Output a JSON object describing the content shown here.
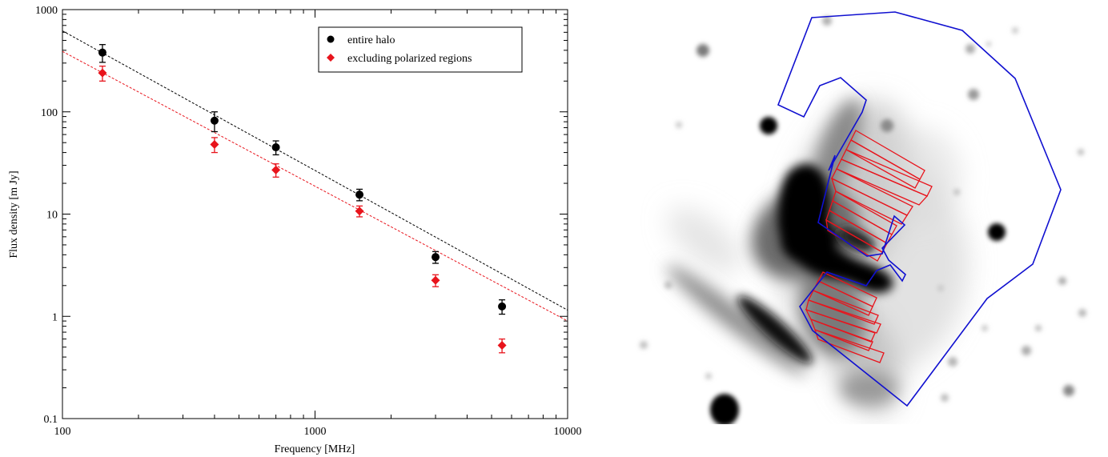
{
  "chart_data": {
    "type": "scatter",
    "xlabel": "Frequency [MHz]",
    "ylabel": "Flux density [m Jy]",
    "xscale": "log",
    "yscale": "log",
    "xlim": [
      100,
      10000
    ],
    "ylim": [
      0.1,
      1000
    ],
    "x_ticks": [
      {
        "value": 100,
        "label": "100"
      },
      {
        "value": 1000,
        "label": "1000"
      },
      {
        "value": 10000,
        "label": "10000"
      }
    ],
    "y_ticks": [
      {
        "value": 0.1,
        "label": "0.1"
      },
      {
        "value": 1,
        "label": "1"
      },
      {
        "value": 10,
        "label": "10"
      },
      {
        "value": 100,
        "label": "100"
      },
      {
        "value": 1000,
        "label": "1000"
      }
    ],
    "legend_position": "top-right",
    "series": [
      {
        "name": "entire halo",
        "color": "#000000",
        "marker": "circle",
        "x": [
          144,
          400,
          700,
          1500,
          3000,
          5500
        ],
        "y": [
          380,
          82,
          45,
          15.5,
          3.8,
          1.25
        ],
        "y_low": [
          305,
          64,
          38,
          13.5,
          3.3,
          1.05
        ],
        "y_high": [
          455,
          100,
          52,
          17.5,
          4.3,
          1.45
        ],
        "fit": {
          "x": [
            100,
            10000
          ],
          "y": [
            620,
            1.15
          ]
        }
      },
      {
        "name": "excluding polarized regions",
        "color": "#e8141c",
        "marker": "diamond",
        "x": [
          144,
          400,
          700,
          1500,
          3000,
          5500
        ],
        "y": [
          240,
          48,
          27,
          10.7,
          2.25,
          0.52
        ],
        "y_low": [
          200,
          40,
          23,
          9.4,
          1.95,
          0.44
        ],
        "y_high": [
          280,
          56,
          31,
          12,
          2.55,
          0.6
        ],
        "fit": {
          "x": [
            100,
            10000
          ],
          "y": [
            390,
            0.9
          ]
        }
      }
    ]
  },
  "panel_image": {
    "description_icon": "radio-halo-grayscale-map",
    "outline_color": "#1010d0",
    "box_color": "#e8141c"
  }
}
